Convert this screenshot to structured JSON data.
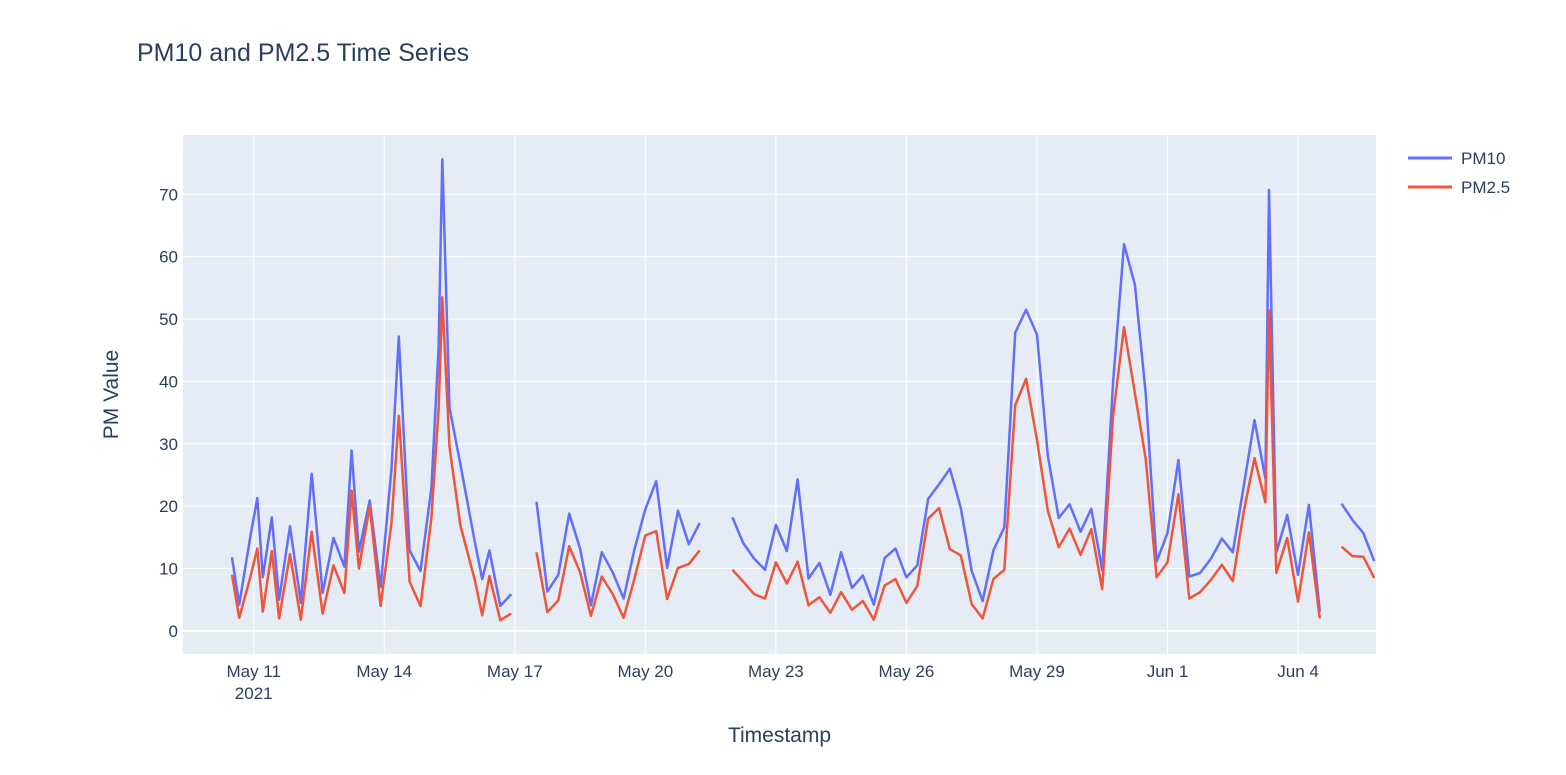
{
  "chart_data": {
    "type": "line",
    "title": "PM10 and PM2.5 Time Series",
    "xlabel": "Timestamp",
    "ylabel": "PM Value",
    "x_axis": {
      "type": "date",
      "range": [
        "2021-05-09 09:00",
        "2021-06-05 19:00"
      ],
      "ticks": [
        {
          "date": "2021-05-11",
          "label": "May 11",
          "sublabel": "2021"
        },
        {
          "date": "2021-05-14",
          "label": "May 14",
          "sublabel": ""
        },
        {
          "date": "2021-05-17",
          "label": "May 17",
          "sublabel": ""
        },
        {
          "date": "2021-05-20",
          "label": "May 20",
          "sublabel": ""
        },
        {
          "date": "2021-05-23",
          "label": "May 23",
          "sublabel": ""
        },
        {
          "date": "2021-05-26",
          "label": "May 26",
          "sublabel": ""
        },
        {
          "date": "2021-05-29",
          "label": "May 29",
          "sublabel": ""
        },
        {
          "date": "2021-06-01",
          "label": "Jun 1",
          "sublabel": ""
        },
        {
          "date": "2021-06-04",
          "label": "Jun 4",
          "sublabel": ""
        }
      ]
    },
    "y_axis": {
      "range": [
        -3.7,
        79.5
      ],
      "ticks": [
        0,
        10,
        20,
        30,
        40,
        50,
        60,
        70
      ]
    },
    "grid": true,
    "legend": {
      "position": "top-right"
    },
    "colors": {
      "PM10": "#636efa",
      "PM2.5": "#EF553B",
      "plot_bg": "#e5ecf6",
      "grid": "#ffffff",
      "text": "#2a3f5f"
    },
    "series": [
      {
        "name": "PM10",
        "color": "#636efa",
        "x": [
          "2021-05-10 12:00",
          "2021-05-10 16:00",
          "2021-05-10 22:00",
          "2021-05-11 02:00",
          "2021-05-11 05:00",
          "2021-05-11 10:00",
          "2021-05-11 14:00",
          "2021-05-11 20:00",
          "2021-05-12 02:00",
          "2021-05-12 08:00",
          "2021-05-12 14:00",
          "2021-05-12 20:00",
          "2021-05-13 02:00",
          "2021-05-13 06:00",
          "2021-05-13 10:00",
          "2021-05-13 16:00",
          "2021-05-13 22:00",
          "2021-05-14 04:00",
          "2021-05-14 08:00",
          "2021-05-14 14:00",
          "2021-05-14 20:00",
          "2021-05-15 02:00",
          "2021-05-15 06:00",
          "2021-05-15 08:00",
          "2021-05-15 12:00",
          "2021-05-15 18:00",
          "2021-05-16 02:00",
          "2021-05-16 06:00",
          "2021-05-16 10:00",
          "2021-05-16 16:00",
          "2021-05-16 22:00",
          null,
          "2021-05-17 12:00",
          "2021-05-17 18:00",
          "2021-05-18 00:00",
          "2021-05-18 06:00",
          "2021-05-18 12:00",
          "2021-05-18 18:00",
          "2021-05-19 00:00",
          "2021-05-19 06:00",
          "2021-05-19 12:00",
          "2021-05-19 18:00",
          "2021-05-20 00:00",
          "2021-05-20 06:00",
          "2021-05-20 12:00",
          "2021-05-20 18:00",
          "2021-05-21 00:00",
          "2021-05-21 06:00",
          null,
          "2021-05-22 00:00",
          "2021-05-22 06:00",
          "2021-05-22 12:00",
          "2021-05-22 18:00",
          "2021-05-23 00:00",
          "2021-05-23 06:00",
          "2021-05-23 12:00",
          "2021-05-23 18:00",
          "2021-05-24 00:00",
          "2021-05-24 06:00",
          "2021-05-24 12:00",
          "2021-05-24 18:00",
          "2021-05-25 00:00",
          "2021-05-25 06:00",
          "2021-05-25 12:00",
          "2021-05-25 18:00",
          "2021-05-26 00:00",
          "2021-05-26 06:00",
          "2021-05-26 12:00",
          "2021-05-26 18:00",
          "2021-05-27 00:00",
          "2021-05-27 06:00",
          "2021-05-27 12:00",
          "2021-05-27 18:00",
          "2021-05-28 00:00",
          "2021-05-28 06:00",
          "2021-05-28 12:00",
          "2021-05-28 18:00",
          "2021-05-29 00:00",
          "2021-05-29 06:00",
          "2021-05-29 12:00",
          "2021-05-29 18:00",
          "2021-05-30 00:00",
          "2021-05-30 06:00",
          "2021-05-30 12:00",
          "2021-05-30 18:00",
          "2021-05-31 00:00",
          "2021-05-31 06:00",
          "2021-05-31 12:00",
          "2021-05-31 18:00",
          "2021-06-01 00:00",
          "2021-06-01 06:00",
          "2021-06-01 12:00",
          "2021-06-01 18:00",
          "2021-06-02 00:00",
          "2021-06-02 06:00",
          "2021-06-02 12:00",
          "2021-06-02 18:00",
          "2021-06-03 00:00",
          "2021-06-03 06:00",
          "2021-06-03 08:00",
          "2021-06-03 12:00",
          "2021-06-03 18:00",
          "2021-06-04 00:00",
          "2021-06-04 06:00",
          "2021-06-04 12:00",
          null,
          "2021-06-05 00:00",
          "2021-06-05 06:00",
          "2021-06-05 12:00",
          "2021-06-05 18:00"
        ],
        "y": [
          11.8,
          4.2,
          14.9,
          21.3,
          8.6,
          18.2,
          5.0,
          16.8,
          4.5,
          25.2,
          6.1,
          14.9,
          10.3,
          28.9,
          12.7,
          20.9,
          7.0,
          26.0,
          47.2,
          12.9,
          9.6,
          22.9,
          45.4,
          75.6,
          35.8,
          26.7,
          14.2,
          8.3,
          12.9,
          4.0,
          5.9,
          null,
          20.7,
          6.3,
          9.0,
          18.8,
          13.2,
          4.1,
          12.6,
          9.4,
          5.2,
          13.1,
          19.5,
          24.0,
          10.1,
          19.3,
          13.9,
          17.3,
          null,
          18.2,
          14.1,
          11.6,
          9.8,
          17.0,
          12.8,
          24.3,
          8.4,
          10.9,
          5.8,
          12.6,
          6.9,
          8.9,
          4.2,
          11.7,
          13.2,
          8.6,
          10.5,
          21.2,
          23.5,
          26.0,
          19.7,
          9.6,
          4.8,
          12.9,
          16.6,
          47.8,
          51.5,
          47.5,
          28.1,
          18.1,
          20.3,
          15.9,
          19.6,
          9.7,
          39.9,
          62.0,
          55.5,
          38.1,
          11.1,
          15.7,
          27.4,
          8.7,
          9.3,
          11.6,
          14.8,
          12.6,
          23.1,
          33.8,
          24.4,
          70.7,
          12.5,
          18.6,
          9.0,
          20.2,
          3.1,
          null,
          20.4,
          17.8,
          15.7,
          11.2
        ]
      },
      {
        "name": "PM2.5",
        "color": "#EF553B",
        "x": [
          "2021-05-10 12:00",
          "2021-05-10 16:00",
          "2021-05-10 22:00",
          "2021-05-11 02:00",
          "2021-05-11 05:00",
          "2021-05-11 10:00",
          "2021-05-11 14:00",
          "2021-05-11 20:00",
          "2021-05-12 02:00",
          "2021-05-12 08:00",
          "2021-05-12 14:00",
          "2021-05-12 20:00",
          "2021-05-13 02:00",
          "2021-05-13 06:00",
          "2021-05-13 10:00",
          "2021-05-13 16:00",
          "2021-05-13 22:00",
          "2021-05-14 04:00",
          "2021-05-14 08:00",
          "2021-05-14 14:00",
          "2021-05-14 20:00",
          "2021-05-15 02:00",
          "2021-05-15 06:00",
          "2021-05-15 08:00",
          "2021-05-15 12:00",
          "2021-05-15 18:00",
          "2021-05-16 02:00",
          "2021-05-16 06:00",
          "2021-05-16 10:00",
          "2021-05-16 16:00",
          "2021-05-16 22:00",
          null,
          "2021-05-17 12:00",
          "2021-05-17 18:00",
          "2021-05-18 00:00",
          "2021-05-18 06:00",
          "2021-05-18 12:00",
          "2021-05-18 18:00",
          "2021-05-19 00:00",
          "2021-05-19 06:00",
          "2021-05-19 12:00",
          "2021-05-19 18:00",
          "2021-05-20 00:00",
          "2021-05-20 06:00",
          "2021-05-20 12:00",
          "2021-05-20 18:00",
          "2021-05-21 00:00",
          "2021-05-21 06:00",
          null,
          "2021-05-22 00:00",
          "2021-05-22 06:00",
          "2021-05-22 12:00",
          "2021-05-22 18:00",
          "2021-05-23 00:00",
          "2021-05-23 06:00",
          "2021-05-23 12:00",
          "2021-05-23 18:00",
          "2021-05-24 00:00",
          "2021-05-24 06:00",
          "2021-05-24 12:00",
          "2021-05-24 18:00",
          "2021-05-25 00:00",
          "2021-05-25 06:00",
          "2021-05-25 12:00",
          "2021-05-25 18:00",
          "2021-05-26 00:00",
          "2021-05-26 06:00",
          "2021-05-26 12:00",
          "2021-05-26 18:00",
          "2021-05-27 00:00",
          "2021-05-27 06:00",
          "2021-05-27 12:00",
          "2021-05-27 18:00",
          "2021-05-28 00:00",
          "2021-05-28 06:00",
          "2021-05-28 12:00",
          "2021-05-28 18:00",
          "2021-05-29 00:00",
          "2021-05-29 06:00",
          "2021-05-29 12:00",
          "2021-05-29 18:00",
          "2021-05-30 00:00",
          "2021-05-30 06:00",
          "2021-05-30 12:00",
          "2021-05-30 18:00",
          "2021-05-31 00:00",
          "2021-05-31 06:00",
          "2021-05-31 12:00",
          "2021-05-31 18:00",
          "2021-06-01 00:00",
          "2021-06-01 06:00",
          "2021-06-01 12:00",
          "2021-06-01 18:00",
          "2021-06-02 00:00",
          "2021-06-02 06:00",
          "2021-06-02 12:00",
          "2021-06-02 18:00",
          "2021-06-03 00:00",
          "2021-06-03 06:00",
          "2021-06-03 08:00",
          "2021-06-03 12:00",
          "2021-06-03 18:00",
          "2021-06-04 00:00",
          "2021-06-04 06:00",
          "2021-06-04 12:00",
          null,
          "2021-06-05 00:00",
          "2021-06-05 06:00",
          "2021-06-05 12:00",
          "2021-06-05 18:00"
        ],
        "y": [
          9.0,
          2.1,
          8.5,
          13.2,
          3.1,
          12.8,
          2.0,
          12.3,
          1.8,
          15.9,
          2.8,
          10.5,
          6.1,
          22.5,
          10.0,
          20.0,
          4.0,
          17.3,
          34.5,
          7.9,
          4.0,
          18.1,
          35.5,
          53.5,
          29.5,
          16.9,
          8.1,
          2.5,
          8.8,
          1.7,
          2.8,
          null,
          12.6,
          3.0,
          4.9,
          13.6,
          9.4,
          2.4,
          8.7,
          5.9,
          2.1,
          8.4,
          15.3,
          16.0,
          5.1,
          10.1,
          10.7,
          12.9,
          null,
          9.8,
          7.9,
          5.9,
          5.2,
          11.0,
          7.6,
          11.1,
          4.1,
          5.4,
          2.9,
          6.2,
          3.4,
          4.8,
          1.8,
          7.3,
          8.3,
          4.5,
          7.2,
          18.0,
          19.7,
          13.1,
          12.1,
          4.3,
          2.0,
          8.3,
          9.8,
          36.2,
          40.4,
          30.6,
          19.3,
          13.4,
          16.4,
          12.2,
          16.3,
          6.7,
          34.5,
          48.7,
          38.1,
          27.6,
          8.6,
          11.0,
          21.9,
          5.2,
          6.2,
          8.2,
          10.6,
          8.0,
          19.0,
          27.7,
          20.6,
          51.4,
          9.3,
          14.9,
          4.7,
          15.8,
          2.0,
          null,
          13.5,
          12.0,
          11.9,
          8.5
        ]
      }
    ]
  }
}
